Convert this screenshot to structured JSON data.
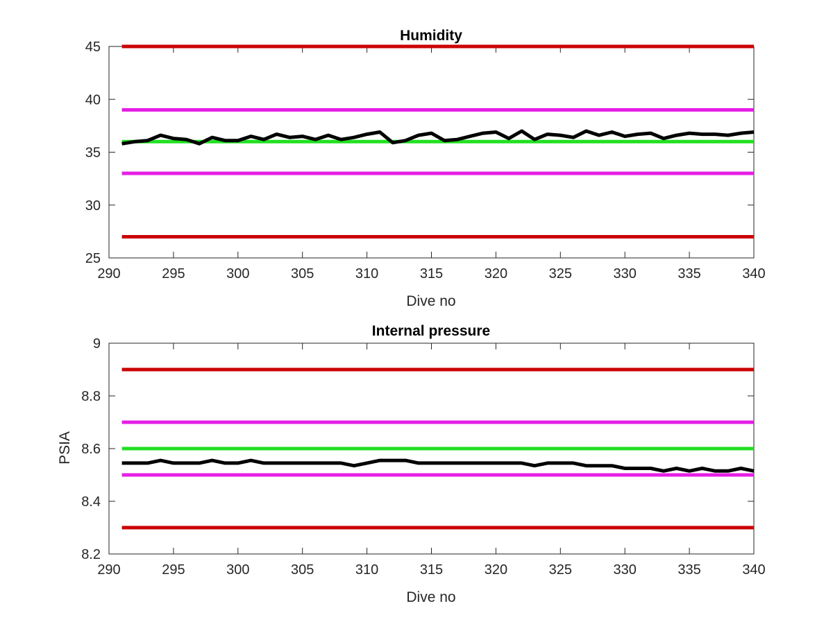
{
  "chart_data": [
    {
      "type": "line",
      "title": "Humidity",
      "xlabel": "Dive no",
      "ylabel": "",
      "xlim": [
        290,
        340
      ],
      "ylim": [
        25,
        45
      ],
      "xticks": [
        290,
        295,
        300,
        305,
        310,
        315,
        320,
        325,
        330,
        335,
        340
      ],
      "yticks": [
        25,
        30,
        35,
        40,
        45
      ],
      "grid": false,
      "series": [
        {
          "kind": "limit",
          "color": "#cc0000",
          "x": [
            291,
            340
          ],
          "values": [
            45,
            45
          ]
        },
        {
          "kind": "limit",
          "color": "#cc0000",
          "x": [
            291,
            340
          ],
          "values": [
            27,
            27
          ]
        },
        {
          "kind": "limit",
          "color": "#e61ee6",
          "x": [
            291,
            340
          ],
          "values": [
            39,
            39
          ]
        },
        {
          "kind": "limit",
          "color": "#e61ee6",
          "x": [
            291,
            340
          ],
          "values": [
            33,
            33
          ]
        },
        {
          "kind": "limit",
          "color": "#22e022",
          "x": [
            291,
            340
          ],
          "values": [
            36,
            36
          ]
        },
        {
          "kind": "data",
          "color": "#000000",
          "x": [
            291,
            292,
            293,
            294,
            295,
            296,
            297,
            298,
            299,
            300,
            301,
            302,
            303,
            304,
            305,
            306,
            307,
            308,
            309,
            310,
            311,
            312,
            313,
            314,
            315,
            316,
            317,
            318,
            319,
            320,
            321,
            322,
            323,
            324,
            325,
            326,
            327,
            328,
            329,
            330,
            331,
            332,
            333,
            334,
            335,
            336,
            337,
            338,
            339,
            340
          ],
          "values": [
            35.8,
            36.0,
            36.1,
            36.6,
            36.3,
            36.2,
            35.8,
            36.4,
            36.1,
            36.1,
            36.5,
            36.2,
            36.7,
            36.4,
            36.5,
            36.2,
            36.6,
            36.2,
            36.4,
            36.7,
            36.9,
            35.9,
            36.1,
            36.6,
            36.8,
            36.1,
            36.2,
            36.5,
            36.8,
            36.9,
            36.3,
            37.0,
            36.2,
            36.7,
            36.6,
            36.4,
            37.0,
            36.6,
            36.9,
            36.5,
            36.7,
            36.8,
            36.3,
            36.6,
            36.8,
            36.7,
            36.7,
            36.6,
            36.8,
            36.9
          ]
        }
      ]
    },
    {
      "type": "line",
      "title": "Internal pressure",
      "xlabel": "Dive no",
      "ylabel": "PSIA",
      "xlim": [
        290,
        340
      ],
      "ylim": [
        8.2,
        9.0
      ],
      "xticks": [
        290,
        295,
        300,
        305,
        310,
        315,
        320,
        325,
        330,
        335,
        340
      ],
      "yticks": [
        8.2,
        8.4,
        8.6,
        8.8,
        9.0
      ],
      "ytick_labels": [
        "8.2",
        "8.4",
        "8.6",
        "8.8",
        "9"
      ],
      "grid": false,
      "series": [
        {
          "kind": "limit",
          "color": "#cc0000",
          "x": [
            291,
            340
          ],
          "values": [
            8.9,
            8.9
          ]
        },
        {
          "kind": "limit",
          "color": "#cc0000",
          "x": [
            291,
            340
          ],
          "values": [
            8.3,
            8.3
          ]
        },
        {
          "kind": "limit",
          "color": "#e61ee6",
          "x": [
            291,
            340
          ],
          "values": [
            8.7,
            8.7
          ]
        },
        {
          "kind": "limit",
          "color": "#e61ee6",
          "x": [
            291,
            340
          ],
          "values": [
            8.5,
            8.5
          ]
        },
        {
          "kind": "limit",
          "color": "#22e022",
          "x": [
            291,
            340
          ],
          "values": [
            8.6,
            8.6
          ]
        },
        {
          "kind": "data",
          "color": "#000000",
          "x": [
            291,
            292,
            293,
            294,
            295,
            296,
            297,
            298,
            299,
            300,
            301,
            302,
            303,
            304,
            305,
            306,
            307,
            308,
            309,
            310,
            311,
            312,
            313,
            314,
            315,
            316,
            317,
            318,
            319,
            320,
            321,
            322,
            323,
            324,
            325,
            326,
            327,
            328,
            329,
            330,
            331,
            332,
            333,
            334,
            335,
            336,
            337,
            338,
            339,
            340
          ],
          "values": [
            8.545,
            8.545,
            8.545,
            8.555,
            8.545,
            8.545,
            8.545,
            8.555,
            8.545,
            8.545,
            8.555,
            8.545,
            8.545,
            8.545,
            8.545,
            8.545,
            8.545,
            8.545,
            8.535,
            8.545,
            8.555,
            8.555,
            8.555,
            8.545,
            8.545,
            8.545,
            8.545,
            8.545,
            8.545,
            8.545,
            8.545,
            8.545,
            8.535,
            8.545,
            8.545,
            8.545,
            8.535,
            8.535,
            8.535,
            8.525,
            8.525,
            8.525,
            8.515,
            8.525,
            8.515,
            8.525,
            8.515,
            8.515,
            8.525,
            8.515
          ]
        }
      ]
    }
  ]
}
